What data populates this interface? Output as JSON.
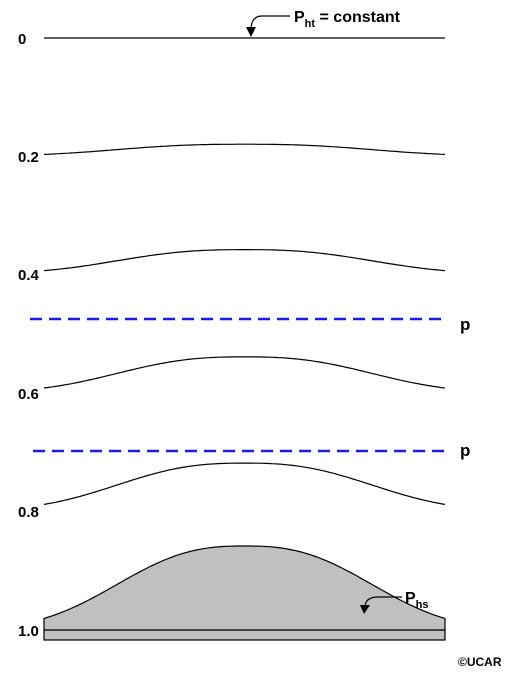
{
  "levels": [
    {
      "label": "0",
      "relief": 0
    },
    {
      "label": "0.2",
      "relief": 0.14
    },
    {
      "label": "0.4",
      "relief": 0.29
    },
    {
      "label": "0.6",
      "relief": 0.43
    },
    {
      "label": "0.8",
      "relief": 0.57
    },
    {
      "label": "1.0",
      "relief": 1
    }
  ],
  "pressure_surfaces": [
    {
      "label": "p",
      "color": "#1a1aff"
    },
    {
      "label": "p",
      "color": "#1a1aff"
    }
  ],
  "top_annotation": {
    "main": "P",
    "sub": "ht",
    "rest": " = constant"
  },
  "surface_annotation": {
    "main": "P",
    "sub": "hs"
  },
  "terrain_fill": "#c0c0c0",
  "credit": "©UCAR"
}
